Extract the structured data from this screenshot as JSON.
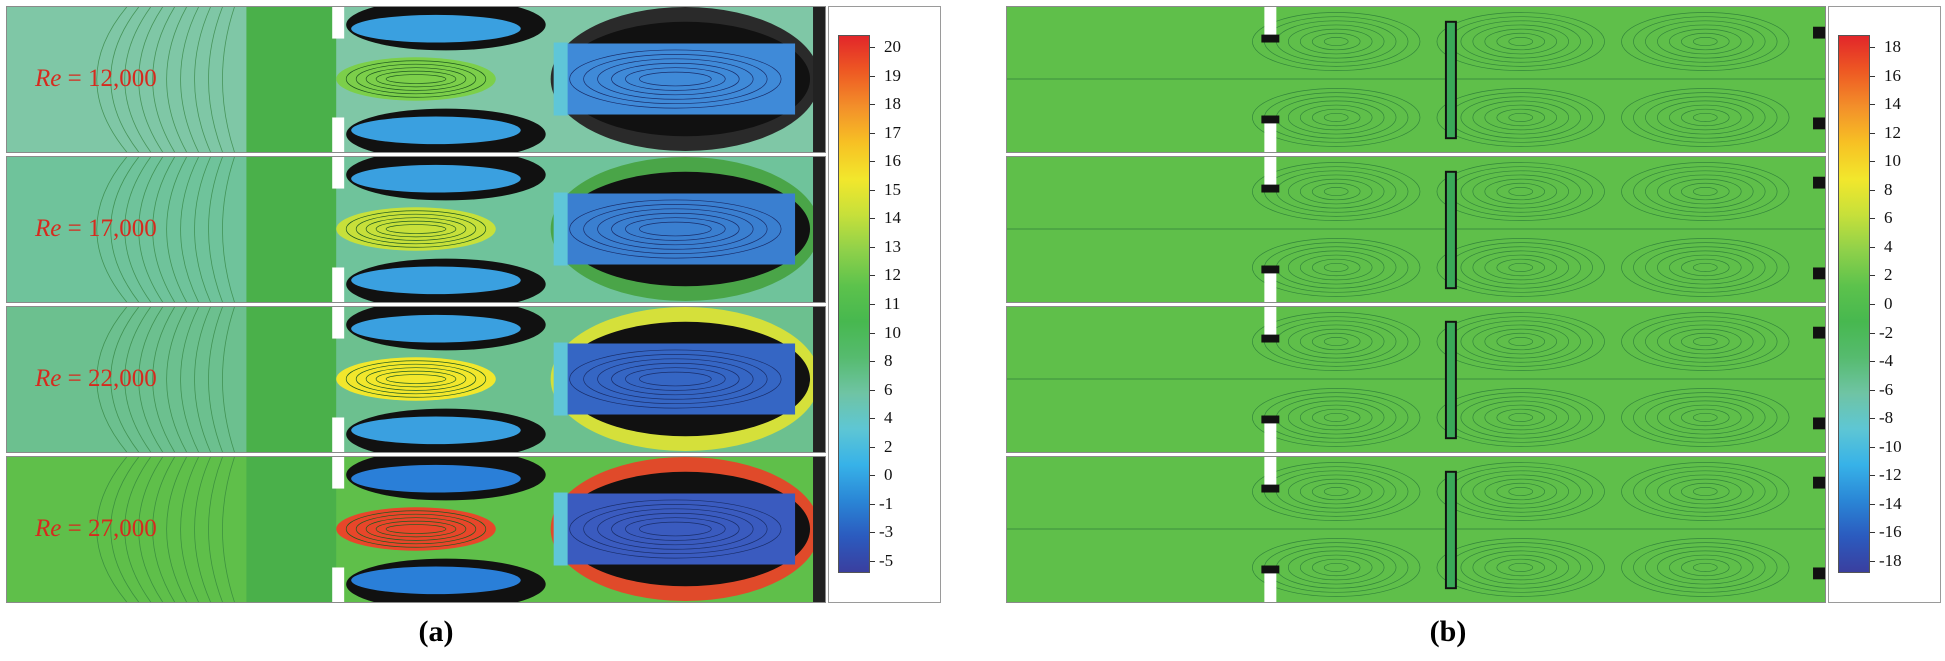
{
  "figure_a": {
    "caption": "(a)",
    "rows": [
      {
        "re_symbol": "Re",
        "re_text": " = 12,000"
      },
      {
        "re_symbol": "Re",
        "re_text": " = 17,000"
      },
      {
        "re_symbol": "Re",
        "re_text": " = 22,000"
      },
      {
        "re_symbol": "Re",
        "re_text": " = 27,000"
      }
    ],
    "colorbar": {
      "ticks": [
        "20",
        "19",
        "18",
        "17",
        "16",
        "15",
        "14",
        "13",
        "12",
        "11",
        "10",
        "8",
        "6",
        "4",
        "2",
        "0",
        "-1",
        "-3",
        "-5"
      ],
      "colors_top_to_bottom": [
        "#e2262a",
        "#ee5a23",
        "#f3902a",
        "#f7c124",
        "#f2e72c",
        "#c7e03a",
        "#8fd14a",
        "#5cc24c",
        "#47b84f",
        "#56bb6f",
        "#6fc4a4",
        "#5ec6d4",
        "#37b2e8",
        "#2a86d6",
        "#2b5bbf",
        "#3a3f9f"
      ]
    }
  },
  "figure_b": {
    "caption": "(b)",
    "colorbar": {
      "ticks": [
        "18",
        "16",
        "14",
        "12",
        "10",
        "8",
        "6",
        "4",
        "2",
        "0",
        "-2",
        "-4",
        "-6",
        "-8",
        "-10",
        "-12",
        "-14",
        "-16",
        "-18"
      ],
      "colors_top_to_bottom": [
        "#e2262a",
        "#ee5a23",
        "#f3902a",
        "#f7c124",
        "#f2e72c",
        "#c7e03a",
        "#8fd14a",
        "#5cc24c",
        "#47b84f",
        "#56bb6f",
        "#6fc4a4",
        "#5ec6d4",
        "#37b2e8",
        "#2a86d6",
        "#2b5bbf",
        "#3a3f9f"
      ]
    }
  },
  "colors": {
    "label_red": "#d62a1e",
    "flow_green": "#5fbf4a",
    "flow_teal": "#6cc6a0",
    "flow_blue": "#3a7fd0",
    "flow_yellow": "#e8e840",
    "flow_red": "#e04a2a"
  }
}
